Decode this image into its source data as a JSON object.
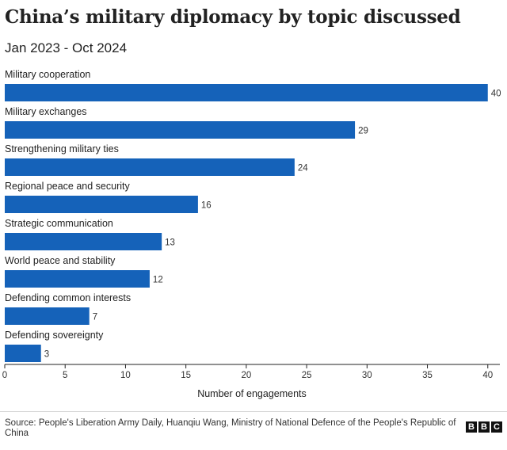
{
  "chart_data": {
    "type": "bar",
    "orientation": "horizontal",
    "title": "China’s military diplomacy by topic discussed",
    "subtitle": "Jan 2023 - Oct 2024",
    "categories": [
      "Military cooperation",
      "Military exchanges",
      "Strengthening military ties",
      "Regional peace and security",
      "Strategic communication",
      "World peace and stability",
      "Defending common interests",
      "Defending sovereignty"
    ],
    "values": [
      40,
      29,
      24,
      16,
      13,
      12,
      7,
      3
    ],
    "xlabel": "Number of engagements",
    "ylabel": "",
    "xlim": [
      0,
      41
    ],
    "xticks": [
      "0",
      "5",
      "10",
      "15",
      "20",
      "25",
      "30",
      "35",
      "40"
    ],
    "bar_color": "#1562b9",
    "grid": false
  },
  "source": "Source: People's Liberation Army Daily, Huanqiu Wang, Ministry of National Defence of the People's Republic of China",
  "logo": {
    "letters": [
      "B",
      "B",
      "C"
    ]
  },
  "colors": {
    "bar": "#1562b9",
    "axis": "#222222"
  }
}
